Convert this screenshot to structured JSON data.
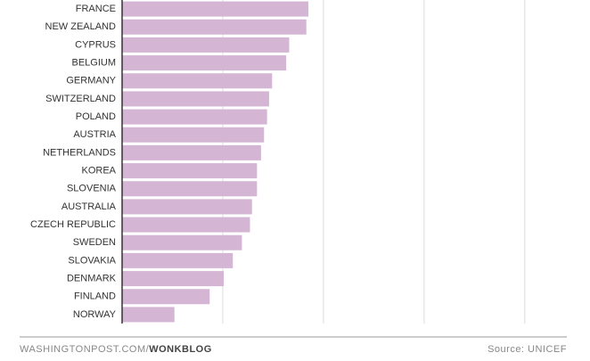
{
  "chart_data": {
    "type": "barh",
    "categories": [
      "FRANCE",
      "NEW ZEALAND",
      "CYPRUS",
      "BELGIUM",
      "GERMANY",
      "SWITZERLAND",
      "POLAND",
      "AUSTRIA",
      "NETHERLANDS",
      "KOREA",
      "SLOVENIA",
      "AUSTRALIA",
      "CZECH REPUBLIC",
      "SWEDEN",
      "SLOVAKIA",
      "DENMARK",
      "FINLAND",
      "NORWAY"
    ],
    "values": [
      1.85,
      1.83,
      1.66,
      1.63,
      1.49,
      1.46,
      1.44,
      1.41,
      1.38,
      1.34,
      1.34,
      1.29,
      1.27,
      1.19,
      1.1,
      1.01,
      0.87,
      0.52
    ],
    "color": "#d4b5d4",
    "xlim": [
      0,
      4.4
    ],
    "xticks": [
      1,
      2,
      3,
      4
    ],
    "grid": true,
    "credit_site": "WASHINGTONPOST.COM/",
    "credit_blog": "WONKBLOG",
    "source": "Source: UNICEF"
  }
}
